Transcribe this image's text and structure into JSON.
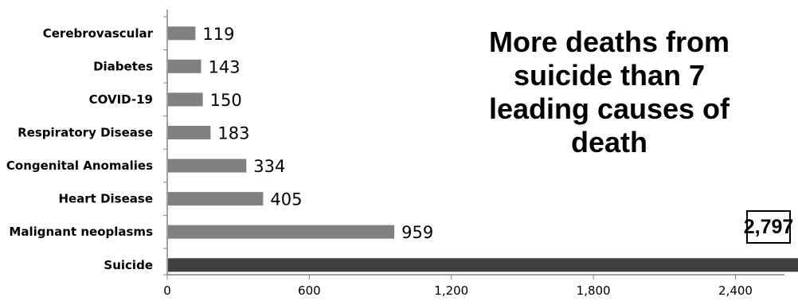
{
  "chart_data": {
    "type": "bar",
    "orientation": "horizontal",
    "categories": [
      "Cerebrovascular",
      "Diabetes",
      "COVID-19",
      "Respiratory Disease",
      "Congenital Anomalies",
      "Heart Disease",
      "Malignant neoplasms",
      "Suicide"
    ],
    "values": [
      119,
      143,
      150,
      183,
      334,
      405,
      959,
      2797
    ],
    "data_labels": [
      "119",
      "143",
      "150",
      "183",
      "334",
      "405",
      "959",
      "2,797"
    ],
    "bar_colors": [
      "#808080",
      "#808080",
      "#808080",
      "#808080",
      "#808080",
      "#808080",
      "#808080",
      "#404040"
    ],
    "xlim": [
      0,
      2600
    ],
    "xticks": [
      0,
      600,
      1200,
      1800,
      2400
    ],
    "xtick_labels": [
      "0",
      "600",
      "1,200",
      "1,800",
      "2,400"
    ],
    "annotation": "More deaths from suicide than 7 leading causes of death",
    "highlight_label": "2,797",
    "grid": false,
    "legend": "none"
  }
}
